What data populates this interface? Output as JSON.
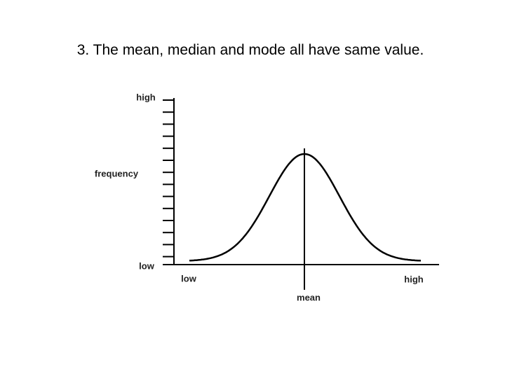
{
  "title": "3. The mean, median and mode all have same value.",
  "diagram": {
    "y_axis": {
      "top_label": "high",
      "middle_label": "frequency",
      "bottom_label": "low"
    },
    "x_axis": {
      "left_label": "low",
      "right_label": "high"
    },
    "center_label": "mean"
  }
}
